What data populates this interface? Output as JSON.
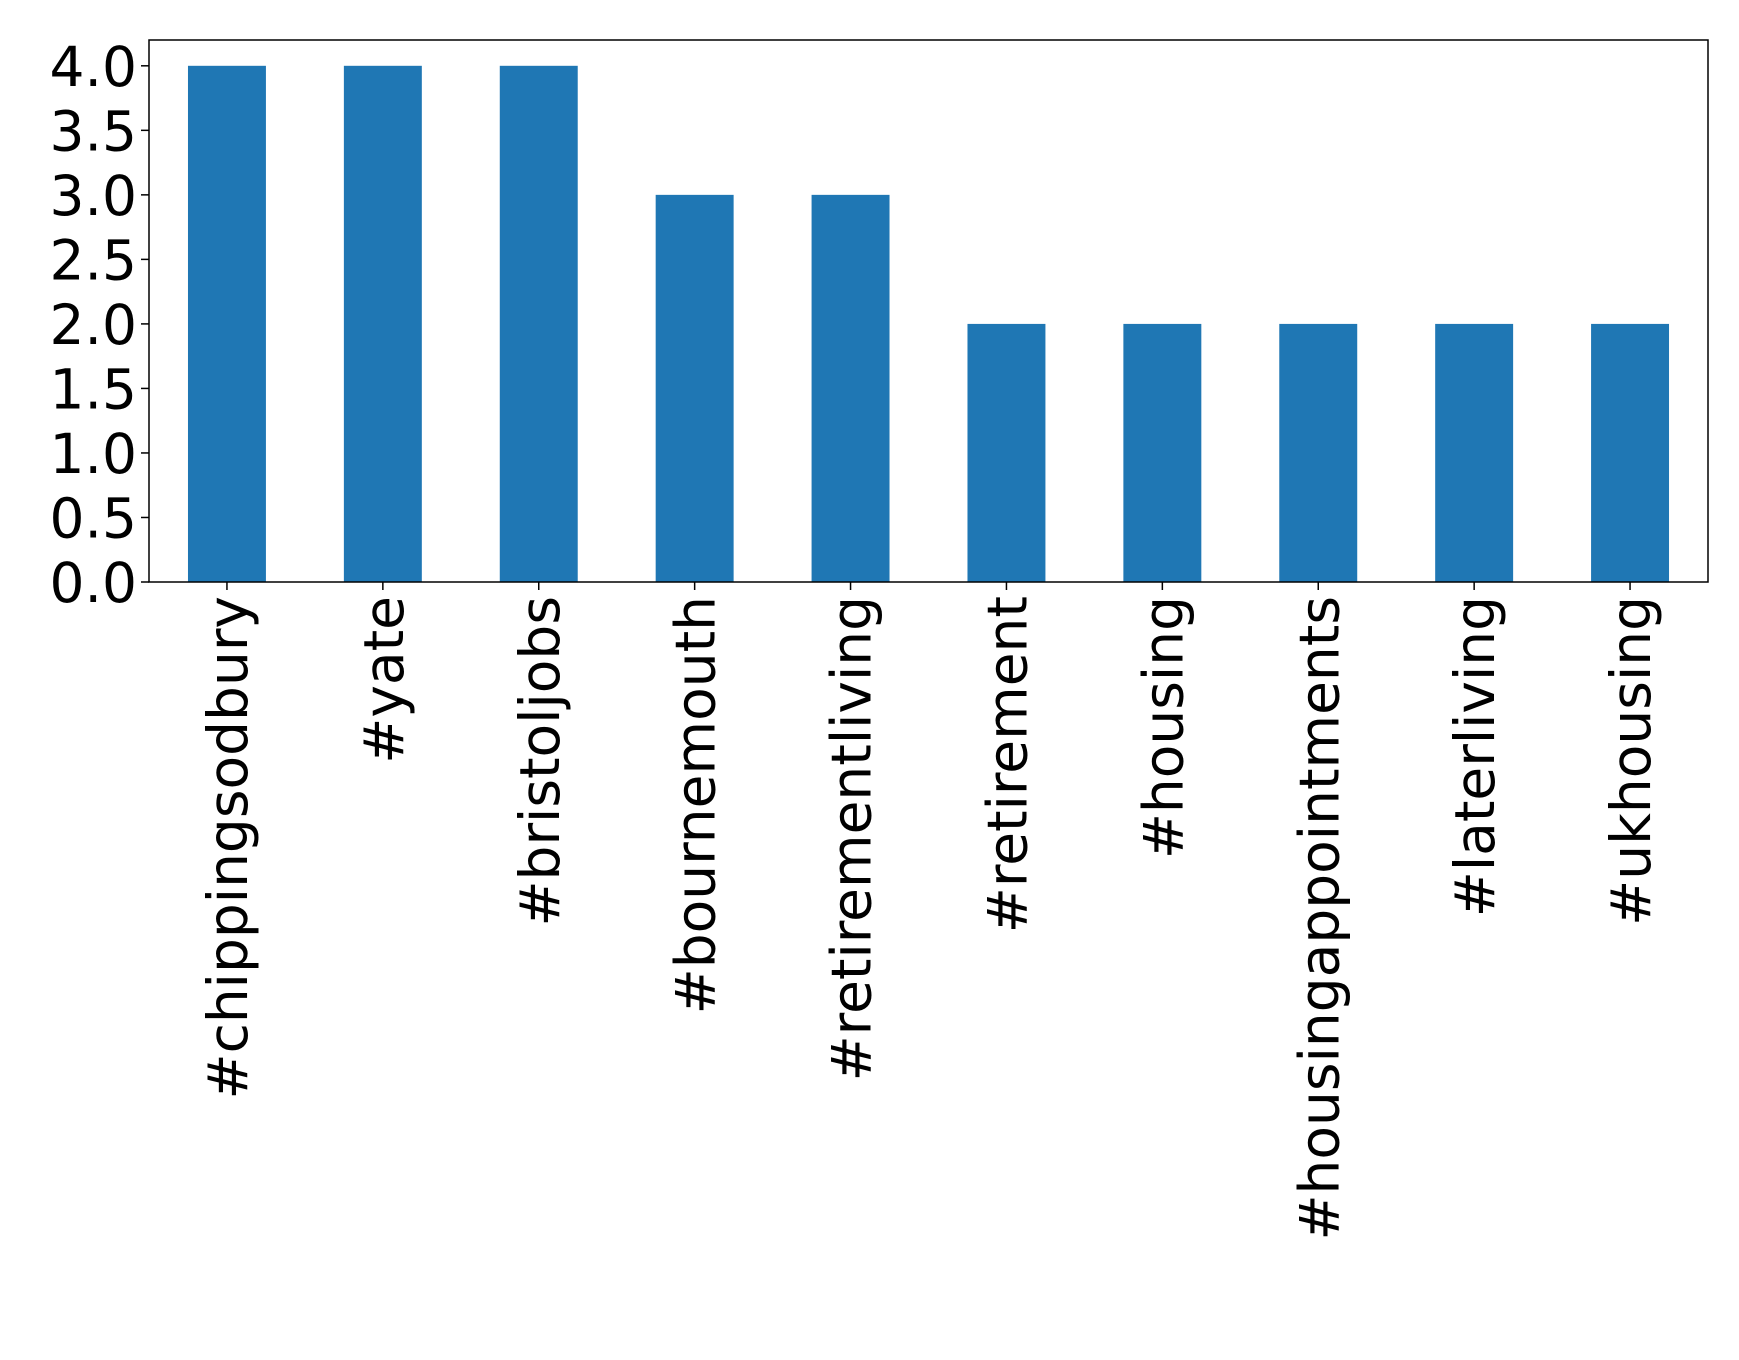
{
  "chart_data": {
    "type": "bar",
    "categories": [
      "#chippingsodbury",
      "#yate",
      "#bristoljobs",
      "#bournemouth",
      "#retirementliving",
      "#retirement",
      "#housing",
      "#housingappointments",
      "#laterliving",
      "#ukhousing"
    ],
    "values": [
      4,
      4,
      4,
      3,
      3,
      2,
      2,
      2,
      2,
      2
    ],
    "color": "#1f77b4",
    "ylim": [
      0,
      4.2
    ],
    "yticks": [
      {
        "value": 0,
        "label": "0.0"
      },
      {
        "value": 0.5,
        "label": "0.5"
      },
      {
        "value": 1,
        "label": "1.0"
      },
      {
        "value": 1.5,
        "label": "1.5"
      },
      {
        "value": 2,
        "label": "2.0"
      },
      {
        "value": 2.5,
        "label": "2.5"
      },
      {
        "value": 3,
        "label": "3.0"
      },
      {
        "value": 3.5,
        "label": "3.5"
      },
      {
        "value": 4,
        "label": "4.0"
      }
    ],
    "grid": false
  }
}
